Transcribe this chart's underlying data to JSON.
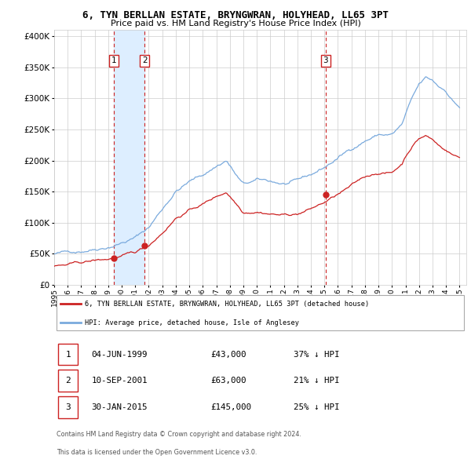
{
  "title": "6, TYN BERLLAN ESTATE, BRYNGWRAN, HOLYHEAD, LL65 3PT",
  "subtitle": "Price paid vs. HM Land Registry's House Price Index (HPI)",
  "legend_line1": "6, TYN BERLLAN ESTATE, BRYNGWRAN, HOLYHEAD, LL65 3PT (detached house)",
  "legend_line2": "HPI: Average price, detached house, Isle of Anglesey",
  "footer1": "Contains HM Land Registry data © Crown copyright and database right 2024.",
  "footer2": "This data is licensed under the Open Government Licence v3.0.",
  "transactions": [
    {
      "num": 1,
      "date": "04-JUN-1999",
      "price": 43000,
      "hpi_diff": "37% ↓ HPI"
    },
    {
      "num": 2,
      "date": "10-SEP-2001",
      "price": 63000,
      "hpi_diff": "21% ↓ HPI"
    },
    {
      "num": 3,
      "date": "30-JAN-2015",
      "price": 145000,
      "hpi_diff": "25% ↓ HPI"
    }
  ],
  "transaction_years": [
    1999.42,
    2001.69,
    2015.08
  ],
  "transaction_prices": [
    43000,
    63000,
    145000
  ],
  "shade_pairs": [
    [
      1999.42,
      2001.69
    ]
  ],
  "ylim": [
    0,
    410000
  ],
  "yticks": [
    0,
    50000,
    100000,
    150000,
    200000,
    250000,
    300000,
    350000,
    400000
  ],
  "hpi_color": "#7aaadd",
  "price_color": "#cc2222",
  "background_color": "#ffffff",
  "grid_color": "#cccccc",
  "shade_color": "#ddeeff"
}
